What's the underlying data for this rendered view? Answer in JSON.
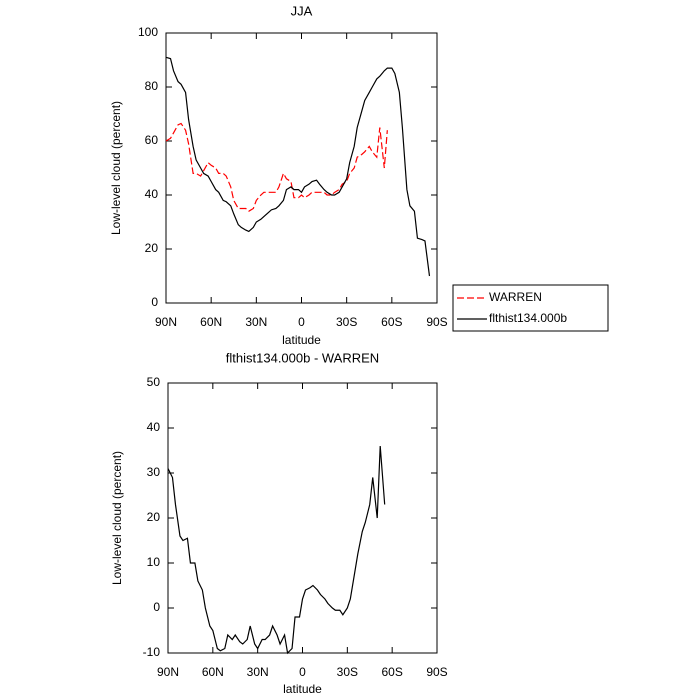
{
  "chart_data": [
    {
      "type": "line",
      "title": "JJA",
      "y_label": "Low-level cloud (percent)",
      "x_label": "latitude",
      "x": [
        90,
        87,
        85,
        82,
        80,
        77,
        75,
        72,
        70,
        67,
        65,
        62,
        60,
        57,
        55,
        52,
        50,
        47,
        45,
        42,
        40,
        37,
        35,
        32,
        30,
        27,
        25,
        22,
        20,
        17,
        15,
        12,
        10,
        7,
        5,
        2,
        0,
        -2,
        -5,
        -7,
        -10,
        -12,
        -15,
        -17,
        -20,
        -22,
        -25,
        -27,
        -30,
        -32,
        -35,
        -37,
        -40,
        -42,
        -45,
        -47,
        -50,
        -52,
        -55,
        -57,
        -60,
        -62,
        -65,
        -67,
        -70,
        -72,
        -75,
        -77,
        -80,
        -82,
        -85
      ],
      "xlim": [
        90,
        -90
      ],
      "xticks": [
        {
          "value": 90,
          "label": "90N"
        },
        {
          "value": 60,
          "label": "60N"
        },
        {
          "value": 30,
          "label": "30N"
        },
        0,
        {
          "value": -30,
          "label": "30S"
        },
        {
          "value": -60,
          "label": "60S"
        },
        {
          "value": -90,
          "label": "90S"
        }
      ],
      "ylim": [
        0,
        100
      ],
      "yticks": [
        0,
        20,
        40,
        60,
        80,
        100
      ],
      "legend": "right",
      "series": [
        {
          "name": "WARREN",
          "color": "#ff0000",
          "linestyle": "dashed",
          "values": [
            60,
            61,
            63,
            66,
            66.5,
            64,
            59,
            48,
            48,
            47,
            49,
            52,
            51,
            50,
            48,
            48,
            47,
            43,
            38,
            35,
            35,
            35,
            34,
            35,
            38,
            40,
            41,
            41,
            41,
            41,
            43,
            48,
            46,
            45,
            39,
            39,
            40,
            39,
            40,
            41,
            41,
            41,
            41,
            40,
            40,
            41,
            42,
            44,
            45,
            48,
            50,
            54,
            55,
            56,
            58,
            56,
            54,
            65,
            50,
            64,
            null,
            null,
            null,
            null,
            null,
            null,
            null,
            null,
            null,
            null,
            null
          ]
        },
        {
          "name": "flthist134.000b",
          "color": "#000000",
          "linestyle": "solid",
          "values": [
            91,
            90.5,
            86,
            82,
            81,
            78,
            68,
            58,
            53,
            50,
            48,
            47,
            45,
            42,
            41,
            38,
            37.5,
            36,
            33,
            29,
            28,
            27,
            26.5,
            28,
            30,
            31,
            32,
            33.5,
            34.5,
            35,
            36,
            38,
            42,
            43,
            42,
            42,
            41,
            43,
            44,
            45,
            45.5,
            44,
            42,
            41,
            40,
            40,
            41,
            43,
            46,
            52,
            58,
            65,
            71,
            75,
            78,
            80,
            83,
            84,
            86,
            87,
            87,
            85,
            78,
            65,
            42,
            36,
            34,
            24,
            23.5,
            23,
            10
          ]
        }
      ]
    },
    {
      "type": "line",
      "title": "flthist134.000b - WARREN",
      "y_label": "Low-level cloud (percent)",
      "x_label": "latitude",
      "x": [
        90,
        87,
        85,
        82,
        80,
        77,
        75,
        72,
        70,
        67,
        65,
        62,
        60,
        57,
        55,
        52,
        50,
        47,
        45,
        42,
        40,
        37,
        35,
        32,
        30,
        27,
        25,
        22,
        20,
        17,
        15,
        12,
        10,
        7,
        5,
        2,
        0,
        -2,
        -5,
        -7,
        -10,
        -12,
        -15,
        -17,
        -20,
        -22,
        -25,
        -27,
        -30,
        -32,
        -35,
        -37,
        -40,
        -42,
        -45,
        -47,
        -50,
        -52,
        -55,
        -57,
        -60,
        -62,
        -65,
        -67,
        -70,
        -72,
        -75,
        -77,
        -80,
        -82,
        -85
      ],
      "xlim": [
        90,
        -90
      ],
      "xticks": [
        {
          "value": 90,
          "label": "90N"
        },
        {
          "value": 60,
          "label": "60N"
        },
        {
          "value": 30,
          "label": "30N"
        },
        0,
        {
          "value": -30,
          "label": "30S"
        },
        {
          "value": -60,
          "label": "60S"
        },
        {
          "value": -90,
          "label": "90S"
        }
      ],
      "ylim": [
        -10,
        50
      ],
      "yticks": [
        -10,
        0,
        10,
        20,
        30,
        40,
        50
      ],
      "series": [
        {
          "color": "#000000",
          "linestyle": "solid",
          "values": [
            31,
            29,
            23,
            16,
            15,
            15.5,
            10,
            10,
            6,
            4,
            0,
            -4,
            -5,
            -9,
            -9.5,
            -9,
            -6,
            -7,
            -6,
            -7.5,
            -8,
            -7,
            -4,
            -8,
            -9,
            -7,
            -7,
            -6,
            -4,
            -6,
            -8,
            -6,
            -10,
            -9,
            -2,
            -2,
            2,
            4,
            4.5,
            5,
            4,
            3,
            2,
            1,
            0,
            -0.5,
            -0.5,
            -1.5,
            0,
            2,
            8,
            12,
            17,
            19,
            23,
            29,
            20,
            36,
            23,
            null,
            null,
            null,
            null,
            null,
            null,
            null,
            null,
            null,
            null,
            null,
            null
          ]
        }
      ]
    }
  ]
}
